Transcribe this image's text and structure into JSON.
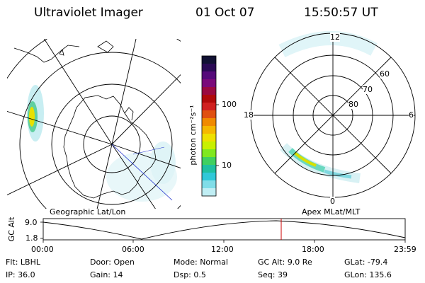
{
  "header": {
    "title": "Ultraviolet Imager",
    "date": "01 Oct 07",
    "time": "15:50:57 UT"
  },
  "colorbar": {
    "unit_label": "photon cm⁻²s⁻¹",
    "ticks": [
      "100",
      "10"
    ],
    "colors": [
      "#111133",
      "#2a0a55",
      "#550a7a",
      "#7a0a7a",
      "#9a0a40",
      "#b00a0a",
      "#d02020",
      "#e05010",
      "#f08a00",
      "#f5b800",
      "#eee000",
      "#c8f000",
      "#80e820",
      "#40d060",
      "#20c0a0",
      "#30c8d8",
      "#80dde8",
      "#c0eef4"
    ]
  },
  "left_panel": {
    "label": "Geographic Lat/Lon"
  },
  "right_panel": {
    "label": "Apex MLat/MLT",
    "mlt_labels": [
      "12",
      "18",
      "6",
      "0"
    ],
    "lat_labels": [
      "60",
      "70",
      "80"
    ]
  },
  "timeline": {
    "ylabel": "GC Alt",
    "y_ticks": [
      "9.0",
      "1.8"
    ],
    "x_ticks": [
      "00:00",
      "06:00",
      "12:00",
      "18:00",
      "23:59"
    ],
    "marker_color": "#cc0000"
  },
  "info": {
    "row1": [
      {
        "key": "Flt:",
        "val": "LBHL"
      },
      {
        "key": "Door:",
        "val": "Open"
      },
      {
        "key": "Mode:",
        "val": "Normal"
      },
      {
        "key": "GC Alt:",
        "val": "9.0 Re"
      },
      {
        "key": "GLat:",
        "val": "-79.4"
      }
    ],
    "row2": [
      {
        "key": "IP:",
        "val": "36.0"
      },
      {
        "key": "Gain:",
        "val": "14"
      },
      {
        "key": "Dsp:",
        "val": "0.5"
      },
      {
        "key": "Seq:",
        "val": "39"
      },
      {
        "key": "GLon:",
        "val": "135.6"
      }
    ]
  }
}
